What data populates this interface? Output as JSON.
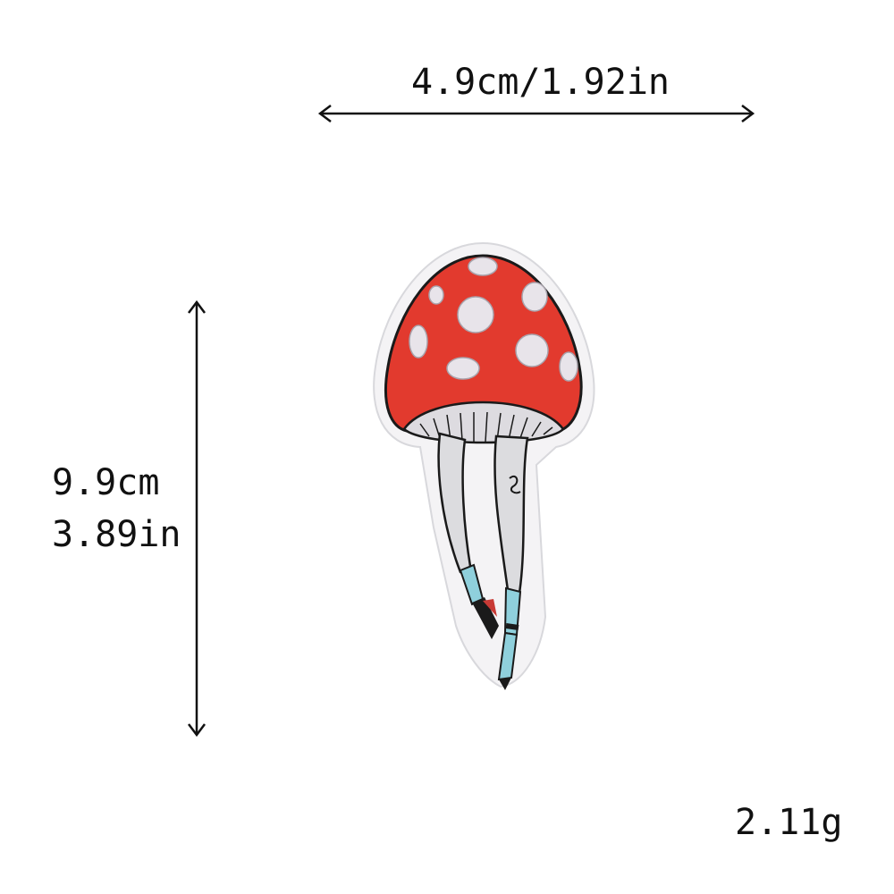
{
  "dimensions": {
    "width_label": "4.9cm/1.92in",
    "height_cm_label": "9.9cm",
    "height_in_label": "3.89in",
    "weight_label": "2.11g"
  },
  "product": {
    "image_icon": "mushroom-legs-patch-icon"
  },
  "colors": {
    "cap_red": "#e23a2e",
    "spots": "#e8e4ea",
    "outline": "#1a1a1a",
    "border": "#f2f2f4",
    "legs": "#dcdcdf",
    "socks": "#8fd0dc",
    "shoes": "#c83a35"
  }
}
